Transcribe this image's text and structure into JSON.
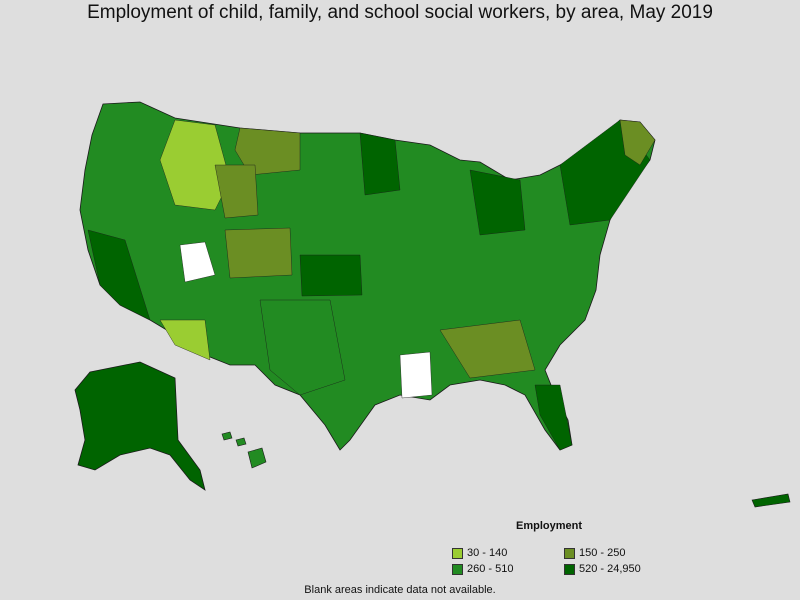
{
  "title": "Employment of child, family, and school social workers, by area, May 2019",
  "legend": {
    "title": "Employment",
    "items": [
      {
        "label": "30 - 140",
        "color": "#9acd32"
      },
      {
        "label": "150 - 250",
        "color": "#6b8e23"
      },
      {
        "label": "260 - 510",
        "color": "#228b22"
      },
      {
        "label": "520 - 24,950",
        "color": "#006400"
      }
    ]
  },
  "footnote": "Blank areas indicate data not available."
}
